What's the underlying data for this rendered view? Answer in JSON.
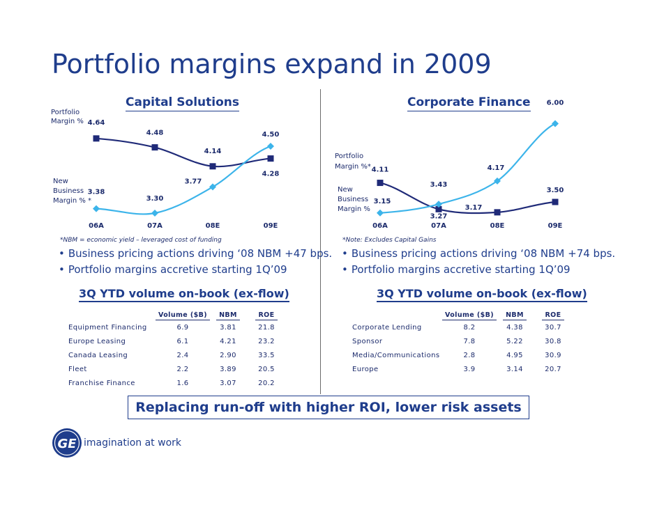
{
  "title": "Portfolio margins expand in 2009",
  "colors": {
    "dark_navy": "#1f2a78",
    "light_blue": "#3cb4ea",
    "title_blue": "#1f3d8c"
  },
  "banner": "Replacing run-off with higher ROI, lower risk assets",
  "tagline": "imagination at work",
  "logo_text": "GE",
  "left": {
    "header": "Capital Solutions",
    "portfolio_label": [
      "Portfolio",
      "Margin %"
    ],
    "nbm_label": [
      "New",
      "Business",
      "Margin % *"
    ],
    "note": "*NBM = economic yield – leveraged cost of funding",
    "bullets": [
      "Business pricing actions driving ‘08 NBM +47 bps.",
      "Portfolio margins accretive starting 1Q’09"
    ],
    "ytd_title": "3Q YTD volume on-book (ex-flow)",
    "table": {
      "headers": [
        "Volume ($B)",
        "NBM",
        "ROE"
      ],
      "rows": [
        [
          "Equipment Financing",
          "6.9",
          "3.81",
          "21.8"
        ],
        [
          "Europe Leasing",
          "6.1",
          "4.21",
          "23.2"
        ],
        [
          "Canada Leasing",
          "2.4",
          "2.90",
          "33.5"
        ],
        [
          "Fleet",
          "2.2",
          "3.89",
          "20.5"
        ],
        [
          "Franchise Finance",
          "1.6",
          "3.07",
          "20.2"
        ]
      ]
    }
  },
  "right": {
    "header": "Corporate Finance",
    "portfolio_label": [
      "Portfolio",
      "Margin %*"
    ],
    "nbm_label": [
      "New",
      "Business",
      "Margin %"
    ],
    "note": "*Note: Excludes Capital Gains",
    "bullets": [
      "Business pricing actions driving ‘08 NBM +74 bps.",
      "Portfolio margins accretive starting 1Q’09"
    ],
    "ytd_title": "3Q YTD volume on-book (ex-flow)",
    "table": {
      "headers": [
        "Volume ($B)",
        "NBM",
        "ROE"
      ],
      "rows": [
        [
          "Corporate Lending",
          "8.2",
          "4.38",
          "30.7"
        ],
        [
          "Sponsor",
          "7.8",
          "5.22",
          "30.8"
        ],
        [
          "Media/Communications",
          "2.8",
          "4.95",
          "30.9"
        ],
        [
          "Europe",
          "3.9",
          "3.14",
          "20.7"
        ]
      ]
    }
  },
  "chart_data": [
    {
      "type": "line",
      "title": "Capital Solutions",
      "categories": [
        "06A",
        "07A",
        "08E",
        "09E"
      ],
      "series": [
        {
          "name": "Portfolio Margin %",
          "values": [
            4.64,
            4.48,
            4.14,
            4.28
          ],
          "labels": [
            "4.64",
            "4.48",
            "4.14",
            "4.28"
          ]
        },
        {
          "name": "New Business Margin %",
          "values": [
            3.38,
            3.3,
            3.77,
            4.5
          ],
          "labels": [
            "3.38",
            "3.30",
            "3.77",
            "4.50"
          ]
        }
      ],
      "ylim": [
        3.0,
        5.0
      ]
    },
    {
      "type": "line",
      "title": "Corporate Finance",
      "categories": [
        "06A",
        "07A",
        "08E",
        "09E"
      ],
      "series": [
        {
          "name": "Portfolio Margin %",
          "values": [
            4.11,
            3.27,
            3.17,
            3.5
          ],
          "labels": [
            "4.11",
            "3.27",
            "3.17",
            "3.50"
          ]
        },
        {
          "name": "New Business Margin %",
          "values": [
            3.15,
            3.43,
            4.17,
            6.0
          ],
          "labels": [
            "3.15",
            "3.43",
            "4.17",
            "6.00"
          ]
        }
      ],
      "ylim": [
        2.5,
        6.5
      ]
    }
  ]
}
